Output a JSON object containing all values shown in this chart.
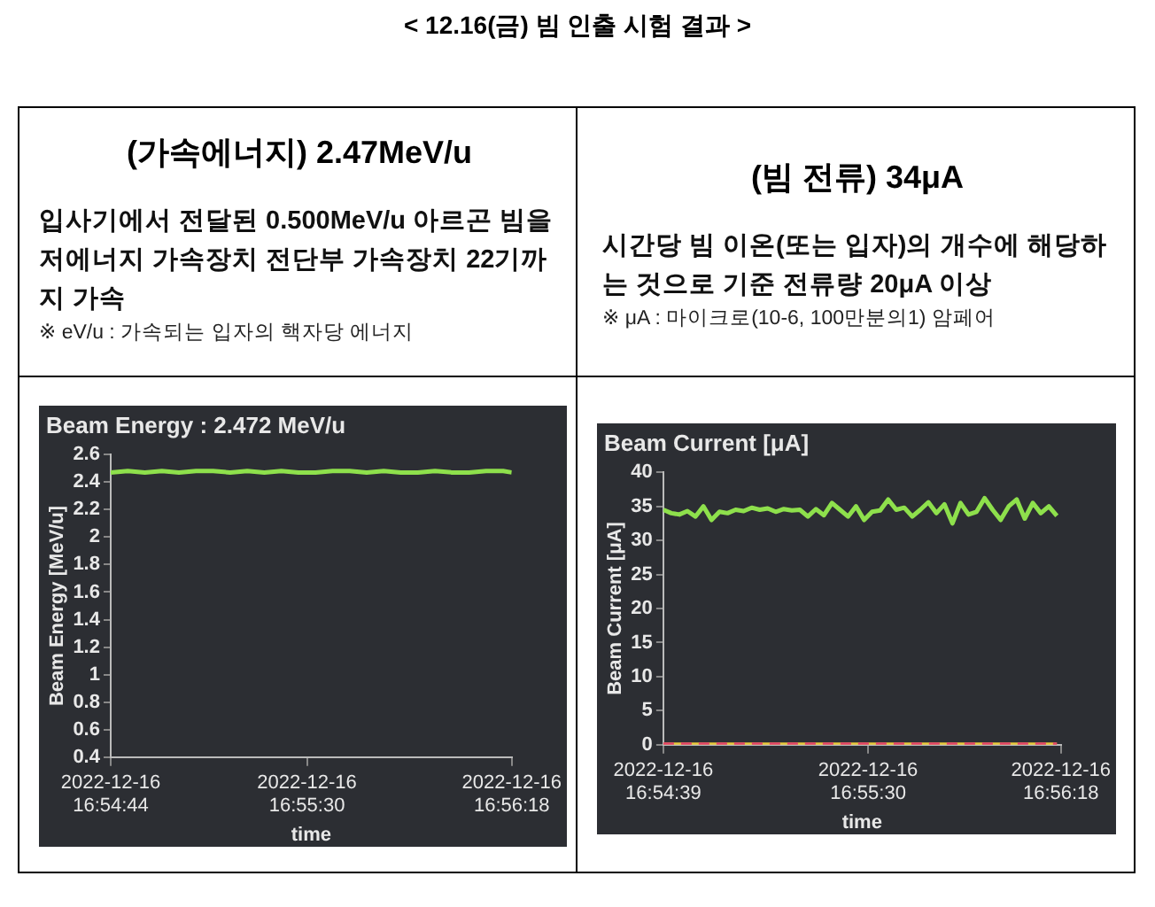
{
  "chart_data": [
    {
      "type": "other",
      "title": "< 12.16(금) 빔 인출 시험 결과 >"
    },
    {
      "type": "other",
      "title": "(가속에너지) 2.47MeV/u",
      "annotations": [
        "입사기에서 전달된 0.500MeV/u 아르곤 빔을 저에너지 가속장치 전단부 가속장치 22기까지 가속",
        "※ eV/u : 가속되는 입자의 핵자당 에너지"
      ]
    },
    {
      "type": "other",
      "title": "(빔 전류) 34μA",
      "annotations": [
        "시간당 빔 이온(또는 입자)의 개수에 해당하는 것으로 기준 전류량 20μA 이상",
        "※ μA : 마이크로(10-6, 100만분의1) 암페어"
      ]
    },
    {
      "type": "line",
      "title": "Beam Energy : 2.472 MeV/u",
      "xlabel": "time",
      "ylabel": "Beam Energy [MeV/u]",
      "legend": false,
      "grid": false,
      "marker": "none",
      "x": [
        "2022-12-16T16:54:44",
        "2022-12-16T16:54:48",
        "2022-12-16T16:54:52",
        "2022-12-16T16:54:56",
        "2022-12-16T16:55:00",
        "2022-12-16T16:55:04",
        "2022-12-16T16:55:08",
        "2022-12-16T16:55:12",
        "2022-12-16T16:55:16",
        "2022-12-16T16:55:20",
        "2022-12-16T16:55:24",
        "2022-12-16T16:55:28",
        "2022-12-16T16:55:32",
        "2022-12-16T16:55:36",
        "2022-12-16T16:55:40",
        "2022-12-16T16:55:44",
        "2022-12-16T16:55:48",
        "2022-12-16T16:55:52",
        "2022-12-16T16:55:56",
        "2022-12-16T16:56:00",
        "2022-12-16T16:56:04",
        "2022-12-16T16:56:08",
        "2022-12-16T16:56:12",
        "2022-12-16T16:56:16",
        "2022-12-16T16:56:18"
      ],
      "series": [
        {
          "color": "#8ee04c",
          "values": [
            2.47,
            2.48,
            2.47,
            2.48,
            2.47,
            2.48,
            2.48,
            2.47,
            2.48,
            2.47,
            2.48,
            2.47,
            2.47,
            2.48,
            2.48,
            2.47,
            2.48,
            2.47,
            2.47,
            2.48,
            2.47,
            2.47,
            2.48,
            2.48,
            2.47
          ]
        }
      ],
      "xlim": [
        "2022-12-16T16:54:44",
        "2022-12-16T16:56:18"
      ],
      "xticks": [
        {
          "value": "2022-12-16T16:54:44",
          "label": "2022-12-16 16:54:44"
        },
        {
          "value": "2022-12-16T16:55:30",
          "label": "2022-12-16 16:55:30"
        },
        {
          "value": "2022-12-16T16:56:18",
          "label": "2022-12-16 16:56:18"
        }
      ],
      "ylim": [
        0.4,
        2.6
      ],
      "yticks": [
        0.4,
        0.6,
        0.8,
        1,
        1.2,
        1.4,
        1.6,
        1.8,
        2,
        2.2,
        2.4,
        2.6
      ]
    },
    {
      "type": "line",
      "title": "Beam Current [μA]",
      "xlabel": "time",
      "ylabel": "Beam Current [μA]",
      "legend": false,
      "grid": false,
      "marker": "none",
      "x": [
        "2022-12-16T16:54:39",
        "2022-12-16T16:54:41",
        "2022-12-16T16:54:43",
        "2022-12-16T16:54:45",
        "2022-12-16T16:54:47",
        "2022-12-16T16:54:49",
        "2022-12-16T16:54:51",
        "2022-12-16T16:54:53",
        "2022-12-16T16:54:55",
        "2022-12-16T16:54:57",
        "2022-12-16T16:54:59",
        "2022-12-16T16:55:01",
        "2022-12-16T16:55:03",
        "2022-12-16T16:55:05",
        "2022-12-16T16:55:07",
        "2022-12-16T16:55:09",
        "2022-12-16T16:55:11",
        "2022-12-16T16:55:13",
        "2022-12-16T16:55:15",
        "2022-12-16T16:55:17",
        "2022-12-16T16:55:19",
        "2022-12-16T16:55:21",
        "2022-12-16T16:55:23",
        "2022-12-16T16:55:25",
        "2022-12-16T16:55:27",
        "2022-12-16T16:55:29",
        "2022-12-16T16:55:31",
        "2022-12-16T16:55:33",
        "2022-12-16T16:55:35",
        "2022-12-16T16:55:37",
        "2022-12-16T16:55:39",
        "2022-12-16T16:55:41",
        "2022-12-16T16:55:43",
        "2022-12-16T16:55:45",
        "2022-12-16T16:55:47",
        "2022-12-16T16:55:49",
        "2022-12-16T16:55:51",
        "2022-12-16T16:55:53",
        "2022-12-16T16:55:55",
        "2022-12-16T16:55:57",
        "2022-12-16T16:55:59",
        "2022-12-16T16:56:01",
        "2022-12-16T16:56:03",
        "2022-12-16T16:56:05",
        "2022-12-16T16:56:07",
        "2022-12-16T16:56:09",
        "2022-12-16T16:56:11",
        "2022-12-16T16:56:13",
        "2022-12-16T16:56:15",
        "2022-12-16T16:56:17"
      ],
      "series": [
        {
          "color": "#8ee04c",
          "values": [
            34.5,
            34,
            33.8,
            34.3,
            33.5,
            35,
            33,
            34.2,
            34,
            34.5,
            34.3,
            34.8,
            34.5,
            34.7,
            34.2,
            34.6,
            34.4,
            34.5,
            33.5,
            34.6,
            33.7,
            35.5,
            34.5,
            33.5,
            35,
            33,
            34.2,
            34.4,
            36,
            34.5,
            34.8,
            33.5,
            34.5,
            35.6,
            34,
            35.3,
            32.5,
            35.5,
            33.8,
            34.2,
            36.2,
            34.5,
            33,
            35,
            36,
            33.2,
            35.5,
            34,
            35,
            33.6
          ]
        },
        {
          "color": "#e8c83a",
          "x": [
            "2022-12-16T16:54:39",
            "2022-12-16T16:56:17"
          ],
          "values": [
            0,
            0
          ]
        },
        {
          "color": "#e0406a",
          "line_style": "dashed",
          "x": [
            "2022-12-16T16:54:39",
            "2022-12-16T16:56:17"
          ],
          "values": [
            0,
            0
          ]
        }
      ],
      "xlim": [
        "2022-12-16T16:54:39",
        "2022-12-16T16:56:18"
      ],
      "xticks": [
        {
          "value": "2022-12-16T16:54:39",
          "label": "2022-12-16 16:54:39"
        },
        {
          "value": "2022-12-16T16:55:30",
          "label": "2022-12-16 16:55:30"
        },
        {
          "value": "2022-12-16T16:56:18",
          "label": "2022-12-16 16:56:18"
        }
      ],
      "ylim": [
        0,
        40
      ],
      "yticks": [
        0,
        5,
        10,
        15,
        20,
        25,
        30,
        35,
        40
      ]
    }
  ]
}
